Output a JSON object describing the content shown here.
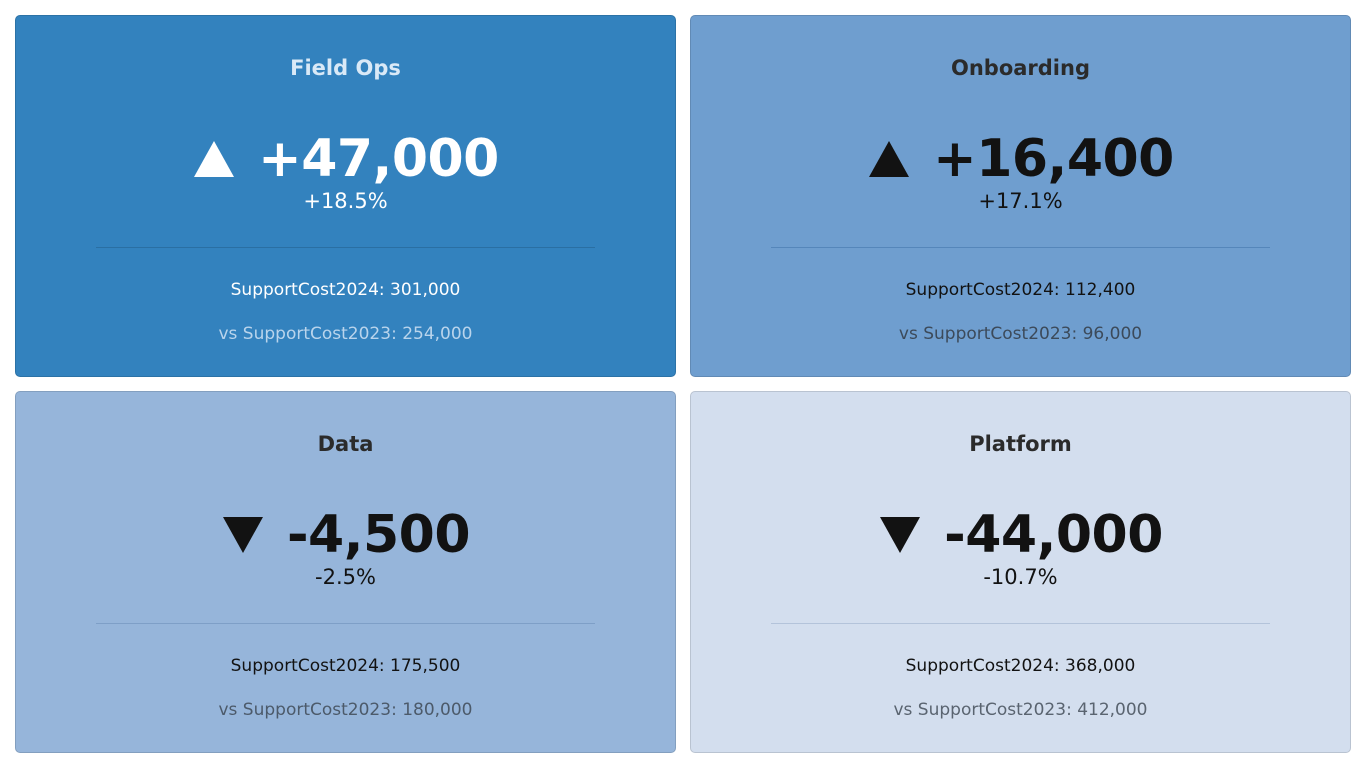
{
  "chart_data": {
    "type": "table",
    "title": "",
    "current_label": "SupportCost2024",
    "previous_label": "SupportCost2023",
    "cards": [
      {
        "title": "Field Ops",
        "direction": "up",
        "delta": "+47,000",
        "pct": "+18.5%",
        "current_text": "SupportCost2024: 301,000",
        "previous_text": "vs SupportCost2023: 254,000",
        "current_value": 301000,
        "previous_value": 254000,
        "bg": "#3382be",
        "title_color": "#d9e9f7",
        "main_color": "#ffffff",
        "sub_color": "#b9d4ec",
        "divider_color": "#2a6fa3"
      },
      {
        "title": "Onboarding",
        "direction": "up",
        "delta": "+16,400",
        "pct": "+17.1%",
        "current_text": "SupportCost2024: 112,400",
        "previous_text": "vs SupportCost2023: 96,000",
        "current_value": 112400,
        "previous_value": 96000,
        "bg": "#6f9ecf",
        "title_color": "#2b2b2b",
        "main_color": "#121212",
        "sub_color": "#3c4a5a",
        "divider_color": "#5586ba"
      },
      {
        "title": "Data",
        "direction": "down",
        "delta": "-4,500",
        "pct": "-2.5%",
        "current_text": "SupportCost2024: 175,500",
        "previous_text": "vs SupportCost2023: 180,000",
        "current_value": 175500,
        "previous_value": 180000,
        "bg": "#96b5da",
        "title_color": "#2b2b2b",
        "main_color": "#121212",
        "sub_color": "#4c5a6a",
        "divider_color": "#7e9fc7"
      },
      {
        "title": "Platform",
        "direction": "down",
        "delta": "-44,000",
        "pct": "-10.7%",
        "current_text": "SupportCost2024: 368,000",
        "previous_text": "vs SupportCost2023: 412,000",
        "current_value": 368000,
        "previous_value": 412000,
        "bg": "#d3deee",
        "title_color": "#2b2b2b",
        "main_color": "#121212",
        "sub_color": "#5a6470",
        "divider_color": "#b3c3da"
      }
    ]
  }
}
